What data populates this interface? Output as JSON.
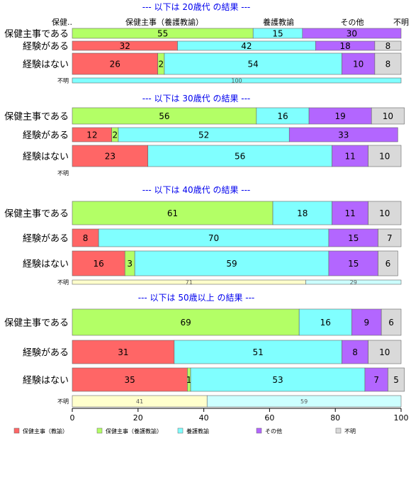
{
  "colors": {
    "hoken_kyoyu": "#ff6666",
    "hoken_yogo": "#b3ff66",
    "yogo": "#80ffff",
    "other": "#b366ff",
    "unknown": "#d9d9d9",
    "unknown_row_a": "#ffffcc",
    "unknown_row_b": "#ccffff",
    "title": "#0000ee"
  },
  "header_labels": [
    "保健..",
    "保健主事（養護教諭）",
    "養護教諭",
    "その他",
    "不明"
  ],
  "legend": [
    "保健主事（教諭）",
    "保健主事（養護教諭）",
    "養護教諭",
    "その他",
    "不明"
  ],
  "chart_data": {
    "type": "bar",
    "orientation": "horizontal",
    "stacked": true,
    "percent": true,
    "xlim": [
      0,
      100
    ],
    "x_ticks": [
      "0",
      "20",
      "40",
      "60",
      "80",
      "100"
    ],
    "categories": [
      "保健主事である",
      "経験がある",
      "経験はない",
      "不明"
    ],
    "panels": [
      {
        "title": "--- 以下は 20歳代 の結果 ---",
        "rows": [
          {
            "label": "保健主事である",
            "values": [
              0,
              55,
              15,
              30,
              0
            ],
            "labels": [
              "",
              "55",
              "15",
              "30",
              ""
            ]
          },
          {
            "label": "経験がある",
            "values": [
              32,
              0,
              42,
              18,
              8
            ],
            "labels": [
              "32",
              "",
              "42",
              "18",
              "8"
            ]
          },
          {
            "label": "経験はない",
            "values": [
              26,
              2,
              54,
              10,
              8
            ],
            "labels": [
              "26",
              "2",
              "54",
              "10",
              "8"
            ]
          },
          {
            "label": "不明",
            "values": [
              0,
              0,
              100,
              0,
              0
            ],
            "labels": [
              "",
              "",
              "100",
              "",
              ""
            ]
          }
        ]
      },
      {
        "title": "--- 以下は 30歳代 の結果 ---",
        "rows": [
          {
            "label": "保健主事である",
            "values": [
              0,
              56,
              16,
              19,
              10
            ],
            "labels": [
              "",
              "56",
              "16",
              "19",
              "10"
            ]
          },
          {
            "label": "経験がある",
            "values": [
              12,
              2,
              52,
              33,
              0
            ],
            "labels": [
              "12",
              "2",
              "52",
              "33",
              ""
            ]
          },
          {
            "label": "経験はない",
            "values": [
              23,
              0,
              56,
              11,
              10
            ],
            "labels": [
              "23",
              "",
              "56",
              "11",
              "10"
            ]
          },
          {
            "label": "不明",
            "values": [],
            "labels": []
          }
        ]
      },
      {
        "title": "--- 以下は 40歳代 の結果 ---",
        "rows": [
          {
            "label": "保健主事である",
            "values": [
              0,
              61,
              18,
              11,
              10
            ],
            "labels": [
              "",
              "61",
              "18",
              "11",
              "10"
            ]
          },
          {
            "label": "経験がある",
            "values": [
              8,
              0,
              70,
              15,
              7
            ],
            "labels": [
              "8",
              "",
              "70",
              "15",
              "7"
            ]
          },
          {
            "label": "経験はない",
            "values": [
              16,
              3,
              59,
              15,
              6
            ],
            "labels": [
              "16",
              "3",
              "59",
              "15",
              "6"
            ]
          },
          {
            "label": "不明",
            "values": [
              71,
              29
            ],
            "labels": [
              "71",
              "29"
            ]
          }
        ]
      },
      {
        "title": "--- 以下は 50歳以上 の結果 ---",
        "rows": [
          {
            "label": "保健主事である",
            "values": [
              0,
              69,
              16,
              9,
              6
            ],
            "labels": [
              "",
              "69",
              "16",
              "9",
              "6"
            ]
          },
          {
            "label": "経験がある",
            "values": [
              31,
              0,
              51,
              8,
              10
            ],
            "labels": [
              "31",
              "",
              "51",
              "8",
              "10"
            ]
          },
          {
            "label": "経験はない",
            "values": [
              35,
              1,
              53,
              7,
              5
            ],
            "labels": [
              "35",
              "1",
              "53",
              "7",
              "5"
            ]
          },
          {
            "label": "不明",
            "values": [
              41,
              59
            ],
            "labels": [
              "41",
              "59"
            ]
          }
        ]
      }
    ]
  }
}
